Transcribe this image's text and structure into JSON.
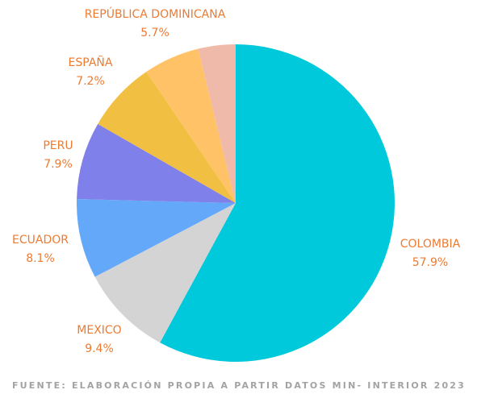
{
  "chart_data": {
    "type": "pie",
    "categories": [
      "COLOMBIA",
      "MEXICO",
      "ECUADOR",
      "PERU",
      "ESPAÑA",
      "REPÚBLICA DOMINICANA",
      null
    ],
    "values": [
      57.9,
      9.4,
      8.1,
      7.9,
      7.2,
      5.7,
      3.8
    ],
    "value_labels": [
      "57.9%",
      "9.4%",
      "8.1%",
      "7.9%",
      "7.2%",
      "5.7%",
      null
    ],
    "colors": [
      "#00c9dc",
      "#d4d4d4",
      "#64a9f9",
      "#7f80e9",
      "#f1c042",
      "#ffc266",
      "#efbaaa"
    ],
    "caption": "FUENTE: ELABORACIÓN PROPIA A PARTIR DATOS MIN- INTERIOR 2023"
  }
}
